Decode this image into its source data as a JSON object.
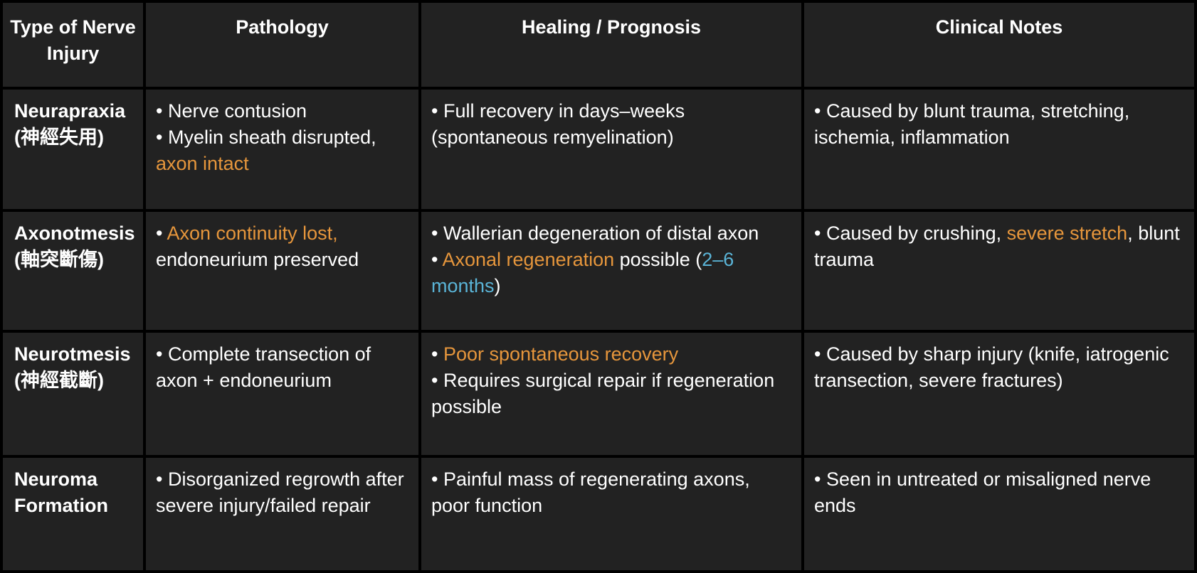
{
  "colors": {
    "white": "#FFFFFF",
    "orange": "#E6963C",
    "blue": "#5AB4D7"
  },
  "table": {
    "headers": [
      "Type of Nerve Injury",
      "Pathology",
      "Healing / Prognosis",
      "Clinical Notes"
    ],
    "rows": [
      {
        "type_name": "Neurapraxia",
        "type_chinese": "(神經失用)",
        "pathology": [
          [
            {
              "t": "Nerve contusion"
            }
          ],
          [
            {
              "t": "Myelin sheath disrupted, "
            },
            {
              "t": "axon intact",
              "c": "orange"
            }
          ]
        ],
        "healing": [
          [
            {
              "t": "Full recovery in days–weeks (spontaneous remyelination)"
            }
          ]
        ],
        "clinical": [
          [
            {
              "t": "Caused by blunt trauma, stretching, ischemia, inflammation"
            }
          ]
        ]
      },
      {
        "type_name": "Axonotmesis",
        "type_chinese": "(軸突斷傷)",
        "pathology": [
          [
            {
              "t": "Axon continuity lost,",
              "c": "orange"
            },
            {
              "t": " endoneurium preserved"
            }
          ]
        ],
        "healing": [
          [
            {
              "t": "Wallerian degeneration of distal axon"
            }
          ],
          [
            {
              "t": "Axonal regeneration",
              "c": "orange"
            },
            {
              "t": " possible ("
            },
            {
              "t": "2–6 months",
              "c": "blue"
            },
            {
              "t": ")"
            }
          ]
        ],
        "clinical": [
          [
            {
              "t": "Caused by crushing, "
            },
            {
              "t": "severe stretch",
              "c": "orange"
            },
            {
              "t": ", blunt trauma"
            }
          ]
        ]
      },
      {
        "type_name": "Neurotmesis",
        "type_chinese": "(神經截斷)",
        "pathology": [
          [
            {
              "t": "Complete transection of axon + endoneurium"
            }
          ]
        ],
        "healing": [
          [
            {
              "t": "Poor spontaneous recovery",
              "c": "orange"
            }
          ],
          [
            {
              "t": "Requires surgical repair if regeneration possible"
            }
          ]
        ],
        "clinical": [
          [
            {
              "t": "Caused by sharp injury (knife, iatrogenic transection, severe fractures)"
            }
          ]
        ]
      },
      {
        "type_name": "Neuroma Formation",
        "type_chinese": "",
        "pathology": [
          [
            {
              "t": "Disorganized regrowth after severe injury/failed repair"
            }
          ]
        ],
        "healing": [
          [
            {
              "t": "Painful mass of regenerating axons, poor function"
            }
          ]
        ],
        "clinical": [
          [
            {
              "t": "Seen in untreated or misaligned nerve ends"
            }
          ]
        ]
      }
    ]
  }
}
